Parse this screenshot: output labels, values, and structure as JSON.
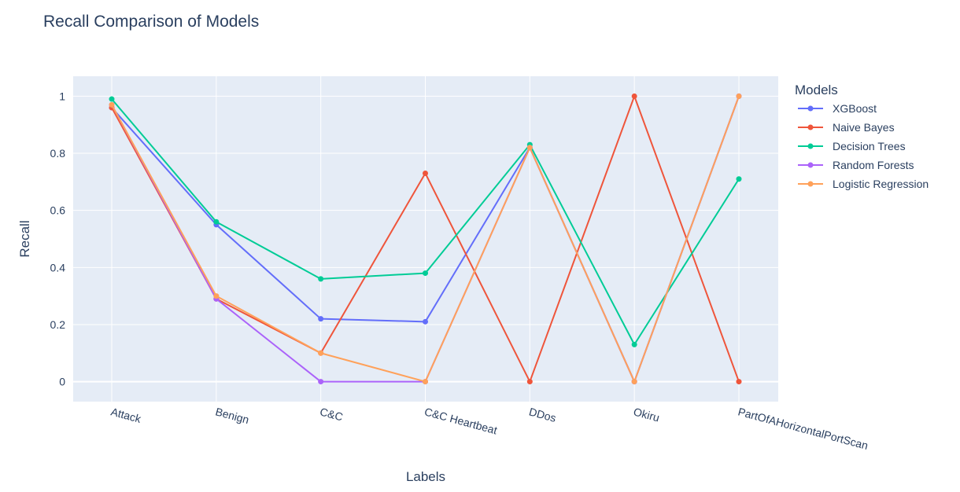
{
  "chart_data": {
    "type": "line",
    "title": "Recall Comparison of Models",
    "xlabel": "Labels",
    "ylabel": "Recall",
    "categories": [
      "Attack",
      "Benign",
      "C&C",
      "C&C Heartbeat",
      "DDos",
      "Okiru",
      "PartOfAHorizontalPortScan"
    ],
    "y_ticks": [
      "0",
      "0.2",
      "0.4",
      "0.6",
      "0.8",
      "1"
    ],
    "ylim": [
      -0.07,
      1.07
    ],
    "grid": true,
    "legend_title": "Models",
    "legend_position": "right",
    "series": [
      {
        "name": "XGBoost",
        "color": "#636efa",
        "values": [
          0.96,
          0.55,
          0.22,
          0.21,
          0.82,
          0.0,
          1.0
        ]
      },
      {
        "name": "Naive Bayes",
        "color": "#EF553B",
        "values": [
          0.96,
          0.29,
          0.1,
          0.73,
          0.0,
          1.0,
          0.0
        ]
      },
      {
        "name": "Decision Trees",
        "color": "#00cc96",
        "values": [
          0.99,
          0.56,
          0.36,
          0.38,
          0.83,
          0.13,
          0.71
        ]
      },
      {
        "name": "Random Forests",
        "color": "#ab63fa",
        "values": [
          0.97,
          0.29,
          0.0,
          0.0,
          0.82,
          0.0,
          1.0
        ]
      },
      {
        "name": "Logistic Regression",
        "color": "#FFA15A",
        "values": [
          0.97,
          0.3,
          0.1,
          0.0,
          0.82,
          0.0,
          1.0
        ]
      }
    ]
  }
}
